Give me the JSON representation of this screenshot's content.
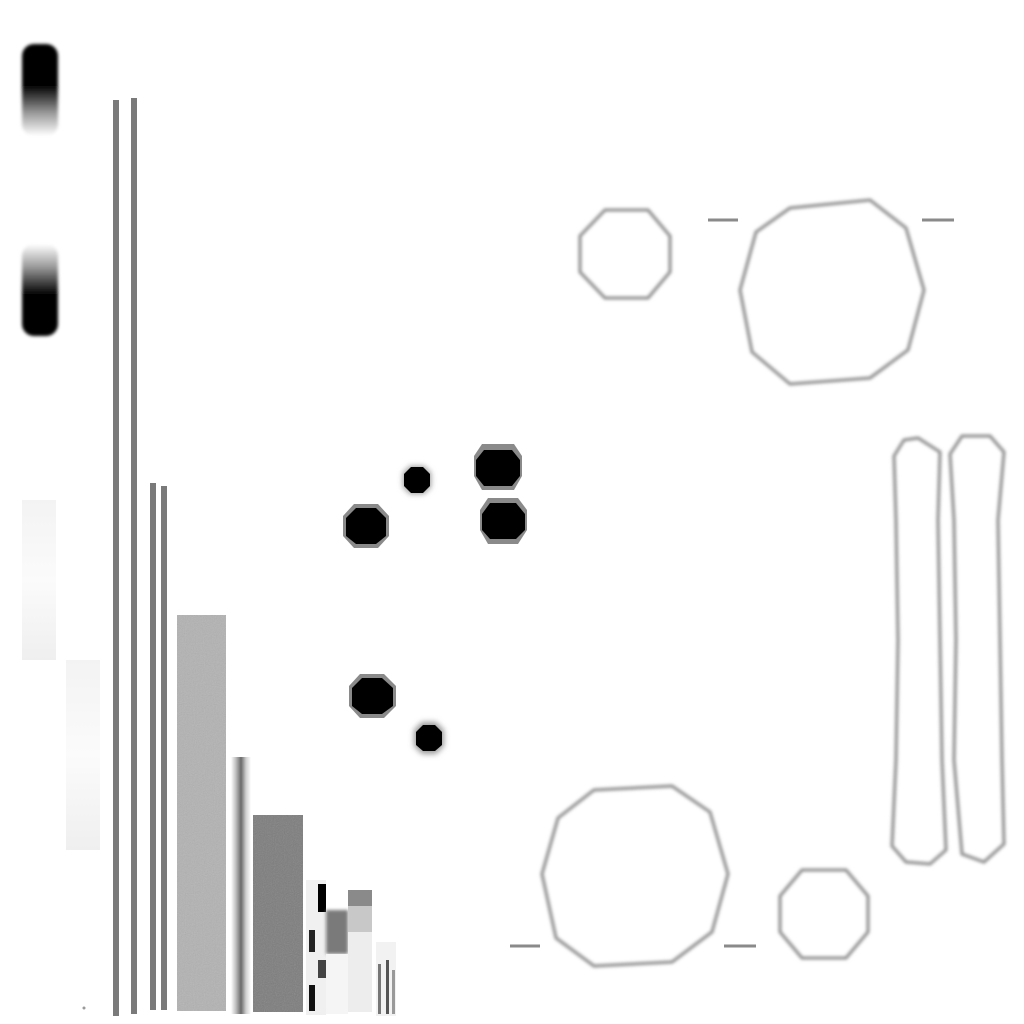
{
  "texture_atlas": {
    "background_color": "#ffffff",
    "ink_color": "#000000",
    "stripe_gray": "#7a7a7a",
    "outline_gray": "#8a8a8a",
    "panel_light_gray": "#b2b2b2",
    "panel_dark_gray": "#7c7c7c"
  }
}
